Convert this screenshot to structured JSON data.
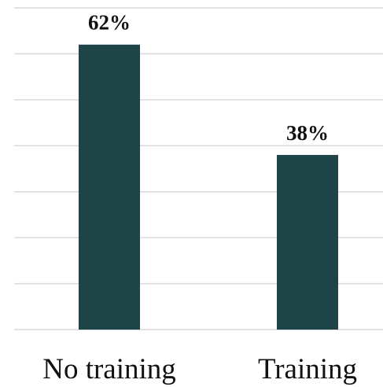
{
  "chart_data": {
    "type": "bar",
    "categories": [
      "No training",
      "Training"
    ],
    "values": [
      62,
      38
    ],
    "data_labels": [
      "62%",
      "38%"
    ],
    "title": "",
    "xlabel": "",
    "ylabel": "",
    "ylim": [
      0,
      70
    ],
    "grid": true,
    "legend": "none",
    "colors": {
      "bar": "#1f4447",
      "grid": "#d9d9d9",
      "text": "#111111"
    }
  }
}
